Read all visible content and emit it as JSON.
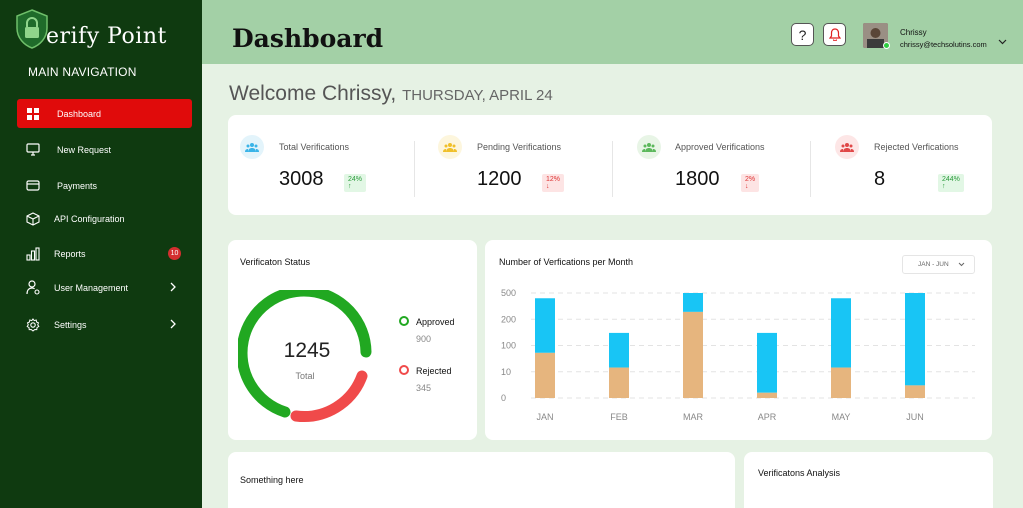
{
  "sidebar": {
    "brand": "erify Point",
    "heading": "MAIN NAVIGATION",
    "items": [
      {
        "label": "Dashboard",
        "icon": "grid-icon"
      },
      {
        "label": "New Request",
        "icon": "monitor-icon"
      },
      {
        "label": "Payments",
        "icon": "credit-card-icon"
      },
      {
        "label": "API Configuration",
        "icon": "cube-icon"
      },
      {
        "label": "Reports",
        "icon": "bar-chart-icon",
        "badge": "10"
      },
      {
        "label": "User Management",
        "icon": "user-gear-icon"
      },
      {
        "label": "Settings",
        "icon": "gear-icon"
      }
    ]
  },
  "header": {
    "title": "Dashboard",
    "help": "?",
    "user_name": "Chrissy",
    "user_email": "chrissy@techsolutins.com"
  },
  "welcome": {
    "greeting": "Welcome Chrissy,",
    "date": "THURSDAY, APRIL 24"
  },
  "stats": [
    {
      "label": "Total Verifications",
      "value": "3008",
      "change": "24%",
      "direction": "up",
      "color": "#3ab4e8",
      "bg": "#e3f4fb"
    },
    {
      "label": "Pending Verifications",
      "value": "1200",
      "change": "12%",
      "direction": "down",
      "color": "#f0c02a",
      "bg": "#fdf6dd"
    },
    {
      "label": "Approved Verifications",
      "value": "1800",
      "change": "2%",
      "direction": "down",
      "color": "#5cb85c",
      "bg": "#e8f5e6"
    },
    {
      "label": "Rejected Verfications",
      "value": "8",
      "change": "244%",
      "direction": "up",
      "color": "#e04848",
      "bg": "#fde6e6"
    }
  ],
  "status_card": {
    "title": "Verificaton Status",
    "total": "1245",
    "total_label": "Total",
    "legend": [
      {
        "label": "Approved",
        "value": "900",
        "color": "#21a821"
      },
      {
        "label": "Rejected",
        "value": "345",
        "color": "#f04a4a"
      }
    ]
  },
  "month_card": {
    "title": "Number of Verfications per Month",
    "range": "JAN - JUN"
  },
  "chart_data": {
    "type": "bar",
    "stacked": true,
    "categories": [
      "JAN",
      "FEB",
      "MAR",
      "APR",
      "MAY",
      "JUN"
    ],
    "y_tick_labels": [
      "500",
      "200",
      "100",
      "10",
      "0"
    ],
    "series": [
      {
        "color": "#e6b57e",
        "values": [
          0.43,
          0.29,
          0.82,
          0.05,
          0.29,
          0.12
        ]
      },
      {
        "color": "#18c5f5",
        "values": [
          0.95,
          0.62,
          1.0,
          0.62,
          0.95,
          1.0
        ]
      }
    ],
    "grid": true
  },
  "bottom": {
    "left_title": "Something here",
    "right_title": "Verificatons Analysis"
  }
}
